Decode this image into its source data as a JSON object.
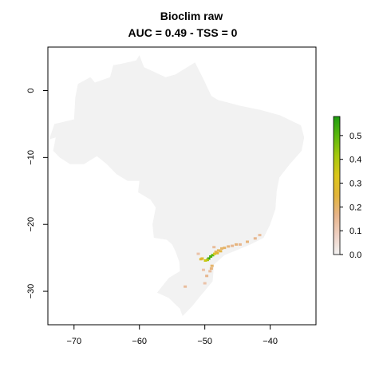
{
  "title_line1": "Bioclim raw",
  "title_line2": "AUC = 0.49 - TSS = 0",
  "colors": {
    "land": "#f2f2f2",
    "axis": "#000000",
    "gradient": [
      "#f2f2f2",
      "#eed0c3",
      "#e7b48a",
      "#e2b43a",
      "#dcc61a",
      "#a6c80c",
      "#5cb80c",
      "#1e9c10"
    ]
  },
  "chart_data": {
    "type": "heatmap",
    "xlim": [
      -74,
      -33
    ],
    "ylim": [
      -35,
      6.5
    ],
    "x_ticks": [
      -70,
      -60,
      -50,
      -40
    ],
    "y_ticks": [
      0,
      -10,
      -20,
      -30
    ],
    "legend": {
      "position": "right",
      "range": [
        0,
        0.58
      ],
      "ticks": [
        0.0,
        0.1,
        0.2,
        0.3,
        0.4,
        0.5
      ],
      "tick_labels": [
        "0.0",
        "0.1",
        "0.2",
        "0.3",
        "0.4",
        "0.5"
      ]
    },
    "region_outline_lonlat": [
      [
        -60.0,
        5.3
      ],
      [
        -59.3,
        3.5
      ],
      [
        -56.0,
        2.0
      ],
      [
        -54.5,
        2.4
      ],
      [
        -51.5,
        4.2
      ],
      [
        -50.3,
        1.9
      ],
      [
        -49.0,
        -0.8
      ],
      [
        -48.0,
        -1.4
      ],
      [
        -44.5,
        -2.3
      ],
      [
        -41.5,
        -2.9
      ],
      [
        -38.5,
        -3.7
      ],
      [
        -35.3,
        -5.2
      ],
      [
        -34.8,
        -7.0
      ],
      [
        -35.2,
        -9.0
      ],
      [
        -37.0,
        -11.0
      ],
      [
        -38.6,
        -13.0
      ],
      [
        -39.0,
        -15.0
      ],
      [
        -39.2,
        -17.7
      ],
      [
        -40.0,
        -20.0
      ],
      [
        -41.0,
        -22.0
      ],
      [
        -43.0,
        -23.0
      ],
      [
        -45.0,
        -23.8
      ],
      [
        -47.0,
        -24.6
      ],
      [
        -48.6,
        -26.0
      ],
      [
        -48.8,
        -28.5
      ],
      [
        -50.5,
        -30.5
      ],
      [
        -52.0,
        -32.3
      ],
      [
        -53.4,
        -33.7
      ],
      [
        -53.8,
        -32.6
      ],
      [
        -55.5,
        -31.0
      ],
      [
        -57.3,
        -30.2
      ],
      [
        -55.5,
        -28.0
      ],
      [
        -53.8,
        -27.0
      ],
      [
        -53.9,
        -25.6
      ],
      [
        -54.5,
        -24.0
      ],
      [
        -55.0,
        -23.0
      ],
      [
        -55.8,
        -22.3
      ],
      [
        -57.8,
        -22.0
      ],
      [
        -58.0,
        -20.0
      ],
      [
        -57.5,
        -17.5
      ],
      [
        -58.3,
        -16.3
      ],
      [
        -60.2,
        -15.2
      ],
      [
        -60.0,
        -13.5
      ],
      [
        -61.8,
        -13.5
      ],
      [
        -63.5,
        -12.5
      ],
      [
        -65.0,
        -11.0
      ],
      [
        -66.5,
        -9.8
      ],
      [
        -68.5,
        -11.0
      ],
      [
        -70.6,
        -11.0
      ],
      [
        -72.2,
        -10.0
      ],
      [
        -73.2,
        -9.0
      ],
      [
        -72.8,
        -7.0
      ],
      [
        -73.8,
        -7.3
      ],
      [
        -73.0,
        -5.0
      ],
      [
        -70.0,
        -4.3
      ],
      [
        -69.8,
        -1.0
      ],
      [
        -69.4,
        1.0
      ],
      [
        -67.5,
        2.0
      ],
      [
        -66.8,
        1.2
      ],
      [
        -64.5,
        2.0
      ],
      [
        -64.0,
        3.8
      ],
      [
        -62.8,
        4.0
      ],
      [
        -60.5,
        4.5
      ],
      [
        -60.0,
        5.3
      ]
    ],
    "suitability_cells": [
      {
        "lon": -49.4,
        "lat": -25.1,
        "value": 0.56
      },
      {
        "lon": -49.1,
        "lat": -24.8,
        "value": 0.52
      },
      {
        "lon": -48.8,
        "lat": -24.6,
        "value": 0.5
      },
      {
        "lon": -49.6,
        "lat": -25.3,
        "value": 0.42
      },
      {
        "lon": -49.9,
        "lat": -25.4,
        "value": 0.36
      },
      {
        "lon": -48.5,
        "lat": -24.4,
        "value": 0.34
      },
      {
        "lon": -50.4,
        "lat": -25.1,
        "value": 0.28
      },
      {
        "lon": -50.6,
        "lat": -25.2,
        "value": 0.26
      },
      {
        "lon": -48.3,
        "lat": -24.1,
        "value": 0.22
      },
      {
        "lon": -47.9,
        "lat": -23.9,
        "value": 0.22
      },
      {
        "lon": -47.4,
        "lat": -23.6,
        "value": 0.2
      },
      {
        "lon": -47.0,
        "lat": -23.5,
        "value": 0.2
      },
      {
        "lon": -46.4,
        "lat": -23.3,
        "value": 0.18
      },
      {
        "lon": -45.8,
        "lat": -23.2,
        "value": 0.16
      },
      {
        "lon": -45.2,
        "lat": -23.0,
        "value": 0.18
      },
      {
        "lon": -44.6,
        "lat": -23.0,
        "value": 0.16
      },
      {
        "lon": -43.5,
        "lat": -22.6,
        "value": 0.18
      },
      {
        "lon": -42.3,
        "lat": -22.1,
        "value": 0.16
      },
      {
        "lon": -41.6,
        "lat": -21.6,
        "value": 0.14
      },
      {
        "lon": -48.6,
        "lat": -23.4,
        "value": 0.14
      },
      {
        "lon": -48.9,
        "lat": -26.2,
        "value": 0.2
      },
      {
        "lon": -49.0,
        "lat": -26.6,
        "value": 0.18
      },
      {
        "lon": -49.2,
        "lat": -27.0,
        "value": 0.14
      },
      {
        "lon": -49.7,
        "lat": -27.7,
        "value": 0.16
      },
      {
        "lon": -50.2,
        "lat": -26.8,
        "value": 0.12
      },
      {
        "lon": -50.0,
        "lat": -28.8,
        "value": 0.12
      },
      {
        "lon": -53.0,
        "lat": -29.3,
        "value": 0.14
      },
      {
        "lon": -51.0,
        "lat": -24.4,
        "value": 0.12
      },
      {
        "lon": -47.6,
        "lat": -24.0,
        "value": 0.24
      },
      {
        "lon": -48.1,
        "lat": -24.3,
        "value": 0.26
      }
    ]
  }
}
